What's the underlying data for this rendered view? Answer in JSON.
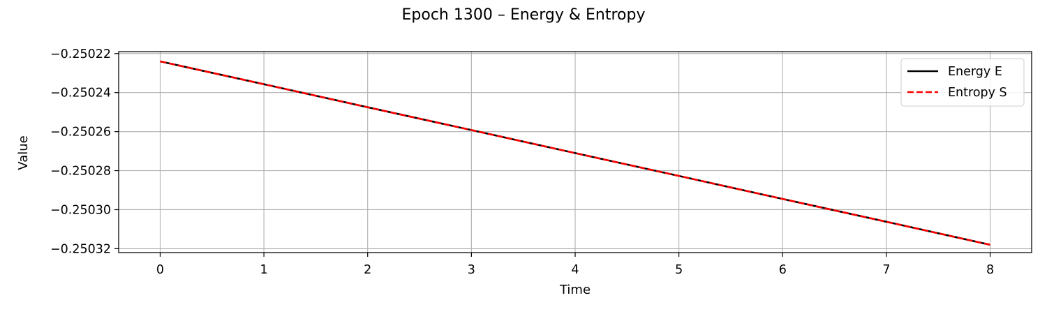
{
  "chart_data": {
    "type": "line",
    "title": "Epoch 1300 – Energy & Entropy",
    "xlabel": "Time",
    "ylabel": "Value",
    "xlim": [
      -0.4,
      8.4
    ],
    "ylim": [
      -0.250322,
      -0.250219
    ],
    "x_ticks": [
      0,
      1,
      2,
      3,
      4,
      5,
      6,
      7,
      8
    ],
    "x_tick_labels": [
      "0",
      "1",
      "2",
      "3",
      "4",
      "5",
      "6",
      "7",
      "8"
    ],
    "y_ticks": [
      -0.25022,
      -0.25024,
      -0.25026,
      -0.25028,
      -0.2503,
      -0.25032
    ],
    "y_tick_labels": [
      "−0.25022",
      "−0.25024",
      "−0.25026",
      "−0.25028",
      "−0.25030",
      "−0.25032"
    ],
    "grid": true,
    "legend_position": "top-right",
    "x": [
      0,
      1,
      2,
      3,
      4,
      5,
      6,
      7,
      8
    ],
    "series": [
      {
        "name": "Energy E",
        "color": "#000000",
        "style": "solid",
        "values": [
          -0.250224,
          -0.2502357,
          -0.2502475,
          -0.2502592,
          -0.250271,
          -0.2502827,
          -0.2502945,
          -0.2503062,
          -0.250318
        ]
      },
      {
        "name": "Entropy S",
        "color": "#ff0000",
        "style": "dashed",
        "values": [
          -0.250224,
          -0.2502357,
          -0.2502475,
          -0.2502592,
          -0.250271,
          -0.2502827,
          -0.2502945,
          -0.2503062,
          -0.250318
        ]
      }
    ]
  }
}
